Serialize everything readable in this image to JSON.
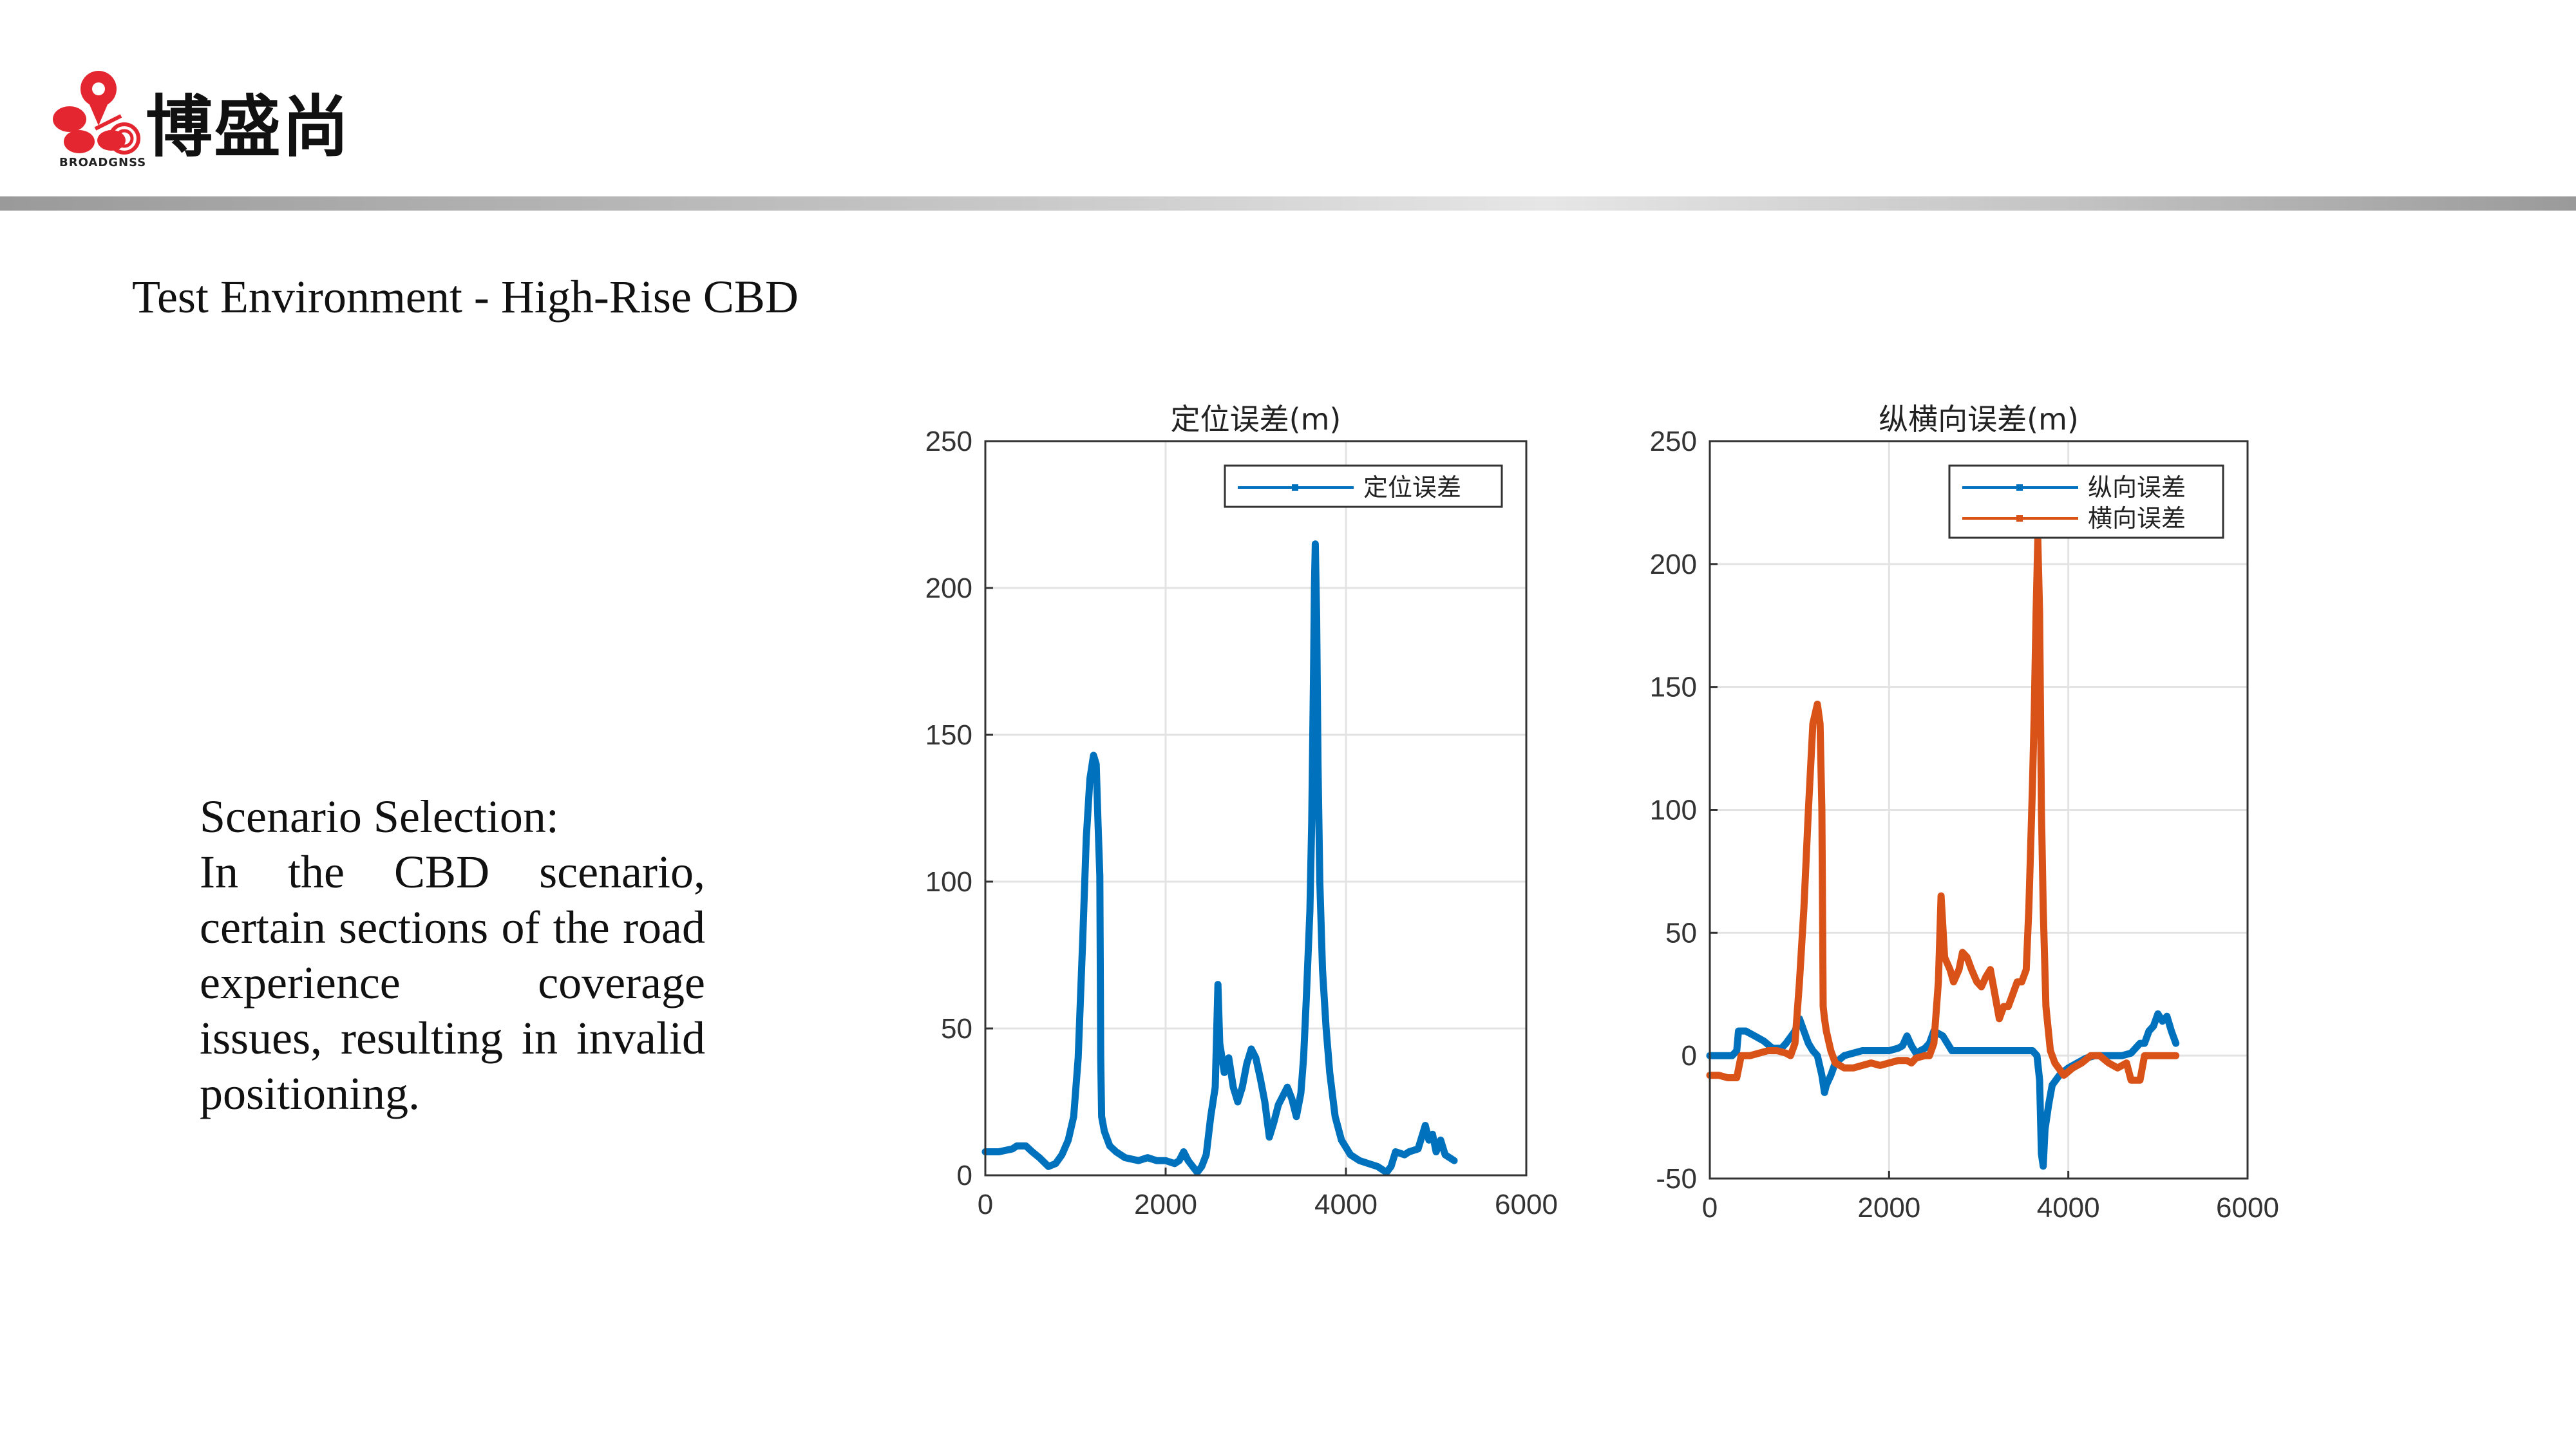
{
  "brand": {
    "name": "博盛尚",
    "sub": "BROADGNSS",
    "color": "#e3262f"
  },
  "heading": "Test Environment - High-Rise CBD",
  "scenario": {
    "title": "Scenario Selection:",
    "body": "In the CBD scenario, certain sections of the road experience coverage issues, resulting in invalid positioning."
  },
  "chart_data": [
    {
      "type": "line",
      "title": "定位误差(m)",
      "xlim": [
        0,
        6000
      ],
      "ylim": [
        0,
        250
      ],
      "xticks": [
        0,
        2000,
        4000,
        6000
      ],
      "yticks": [
        0,
        50,
        100,
        150,
        200,
        250
      ],
      "grid": true,
      "legend": "top-right",
      "series": [
        {
          "name": "定位误差",
          "color": "#0072bd",
          "points": [
            [
              0,
              8
            ],
            [
              150,
              8
            ],
            [
              300,
              9
            ],
            [
              350,
              10
            ],
            [
              450,
              10
            ],
            [
              520,
              8
            ],
            [
              600,
              6
            ],
            [
              700,
              3
            ],
            [
              780,
              4
            ],
            [
              850,
              7
            ],
            [
              920,
              12
            ],
            [
              980,
              20
            ],
            [
              1030,
              40
            ],
            [
              1080,
              80
            ],
            [
              1120,
              115
            ],
            [
              1160,
              135
            ],
            [
              1200,
              143
            ],
            [
              1230,
              140
            ],
            [
              1250,
              120
            ],
            [
              1270,
              102
            ],
            [
              1280,
              40
            ],
            [
              1290,
              20
            ],
            [
              1320,
              15
            ],
            [
              1380,
              10
            ],
            [
              1450,
              8
            ],
            [
              1550,
              6
            ],
            [
              1700,
              5
            ],
            [
              1800,
              6
            ],
            [
              1900,
              5
            ],
            [
              2000,
              5
            ],
            [
              2100,
              4
            ],
            [
              2150,
              5
            ],
            [
              2200,
              8
            ],
            [
              2250,
              5
            ],
            [
              2300,
              3
            ],
            [
              2350,
              1
            ],
            [
              2400,
              3
            ],
            [
              2450,
              7
            ],
            [
              2500,
              20
            ],
            [
              2550,
              30
            ],
            [
              2580,
              65
            ],
            [
              2600,
              45
            ],
            [
              2650,
              35
            ],
            [
              2700,
              40
            ],
            [
              2750,
              30
            ],
            [
              2800,
              25
            ],
            [
              2850,
              30
            ],
            [
              2900,
              38
            ],
            [
              2950,
              43
            ],
            [
              3000,
              40
            ],
            [
              3050,
              33
            ],
            [
              3100,
              25
            ],
            [
              3150,
              13
            ],
            [
              3200,
              18
            ],
            [
              3250,
              24
            ],
            [
              3300,
              27
            ],
            [
              3350,
              30
            ],
            [
              3400,
              26
            ],
            [
              3450,
              20
            ],
            [
              3500,
              28
            ],
            [
              3530,
              40
            ],
            [
              3560,
              60
            ],
            [
              3600,
              90
            ],
            [
              3620,
              120
            ],
            [
              3640,
              170
            ],
            [
              3650,
              200
            ],
            [
              3660,
              215
            ],
            [
              3675,
              190
            ],
            [
              3690,
              140
            ],
            [
              3710,
              100
            ],
            [
              3740,
              70
            ],
            [
              3780,
              50
            ],
            [
              3820,
              35
            ],
            [
              3880,
              20
            ],
            [
              3950,
              12
            ],
            [
              4050,
              7
            ],
            [
              4150,
              5
            ],
            [
              4250,
              4
            ],
            [
              4350,
              3
            ],
            [
              4450,
              1
            ],
            [
              4500,
              3
            ],
            [
              4550,
              8
            ],
            [
              4650,
              7
            ],
            [
              4700,
              8
            ],
            [
              4800,
              9
            ],
            [
              4850,
              14
            ],
            [
              4880,
              17
            ],
            [
              4920,
              12
            ],
            [
              4960,
              14
            ],
            [
              5000,
              8
            ],
            [
              5050,
              12
            ],
            [
              5100,
              7
            ],
            [
              5200,
              5
            ]
          ]
        }
      ]
    },
    {
      "type": "line",
      "title": "纵横向误差(m)",
      "xlim": [
        0,
        6000
      ],
      "ylim": [
        -50,
        250
      ],
      "xticks": [
        0,
        2000,
        4000,
        6000
      ],
      "yticks": [
        -50,
        0,
        50,
        100,
        150,
        200,
        250
      ],
      "grid": true,
      "legend": "top-right",
      "series": [
        {
          "name": "纵向误差",
          "color": "#0072bd",
          "points": [
            [
              0,
              0
            ],
            [
              150,
              0
            ],
            [
              250,
              0
            ],
            [
              300,
              2
            ],
            [
              320,
              10
            ],
            [
              400,
              10
            ],
            [
              500,
              8
            ],
            [
              600,
              6
            ],
            [
              700,
              3
            ],
            [
              800,
              3
            ],
            [
              850,
              5
            ],
            [
              950,
              10
            ],
            [
              1000,
              15
            ],
            [
              1050,
              10
            ],
            [
              1100,
              5
            ],
            [
              1150,
              2
            ],
            [
              1200,
              0
            ],
            [
              1250,
              -8
            ],
            [
              1280,
              -15
            ],
            [
              1300,
              -12
            ],
            [
              1350,
              -8
            ],
            [
              1400,
              -3
            ],
            [
              1500,
              0
            ],
            [
              1600,
              1
            ],
            [
              1700,
              2
            ],
            [
              1800,
              2
            ],
            [
              1900,
              2
            ],
            [
              2000,
              2
            ],
            [
              2100,
              3
            ],
            [
              2150,
              4
            ],
            [
              2200,
              8
            ],
            [
              2250,
              4
            ],
            [
              2300,
              1
            ],
            [
              2400,
              3
            ],
            [
              2450,
              5
            ],
            [
              2500,
              10
            ],
            [
              2550,
              9
            ],
            [
              2600,
              8
            ],
            [
              2700,
              2
            ],
            [
              2800,
              2
            ],
            [
              2900,
              2
            ],
            [
              3000,
              2
            ],
            [
              3100,
              2
            ],
            [
              3200,
              2
            ],
            [
              3300,
              2
            ],
            [
              3400,
              2
            ],
            [
              3500,
              2
            ],
            [
              3600,
              2
            ],
            [
              3650,
              0
            ],
            [
              3680,
              -10
            ],
            [
              3700,
              -40
            ],
            [
              3720,
              -45
            ],
            [
              3740,
              -30
            ],
            [
              3780,
              -20
            ],
            [
              3820,
              -12
            ],
            [
              3900,
              -8
            ],
            [
              4000,
              -5
            ],
            [
              4100,
              -3
            ],
            [
              4200,
              -1
            ],
            [
              4300,
              0
            ],
            [
              4500,
              0
            ],
            [
              4600,
              0
            ],
            [
              4700,
              1
            ],
            [
              4800,
              5
            ],
            [
              4850,
              5
            ],
            [
              4900,
              10
            ],
            [
              4950,
              12
            ],
            [
              5000,
              17
            ],
            [
              5050,
              14
            ],
            [
              5100,
              16
            ],
            [
              5150,
              10
            ],
            [
              5200,
              5
            ]
          ]
        },
        {
          "name": "横向误差",
          "color": "#d95319",
          "points": [
            [
              0,
              -8
            ],
            [
              100,
              -8
            ],
            [
              200,
              -9
            ],
            [
              300,
              -9
            ],
            [
              350,
              0
            ],
            [
              450,
              0
            ],
            [
              550,
              1
            ],
            [
              650,
              2
            ],
            [
              750,
              2
            ],
            [
              850,
              1
            ],
            [
              900,
              0
            ],
            [
              950,
              5
            ],
            [
              1000,
              30
            ],
            [
              1050,
              60
            ],
            [
              1100,
              100
            ],
            [
              1150,
              135
            ],
            [
              1200,
              143
            ],
            [
              1230,
              135
            ],
            [
              1250,
              100
            ],
            [
              1265,
              20
            ],
            [
              1280,
              15
            ],
            [
              1300,
              10
            ],
            [
              1350,
              2
            ],
            [
              1400,
              -3
            ],
            [
              1500,
              -5
            ],
            [
              1600,
              -5
            ],
            [
              1700,
              -4
            ],
            [
              1800,
              -3
            ],
            [
              1900,
              -4
            ],
            [
              2000,
              -3
            ],
            [
              2100,
              -2
            ],
            [
              2200,
              -2
            ],
            [
              2250,
              -3
            ],
            [
              2300,
              -1
            ],
            [
              2400,
              0
            ],
            [
              2450,
              0
            ],
            [
              2500,
              5
            ],
            [
              2550,
              30
            ],
            [
              2580,
              65
            ],
            [
              2620,
              40
            ],
            [
              2680,
              35
            ],
            [
              2720,
              30
            ],
            [
              2780,
              35
            ],
            [
              2820,
              42
            ],
            [
              2870,
              40
            ],
            [
              2920,
              35
            ],
            [
              2980,
              30
            ],
            [
              3030,
              28
            ],
            [
              3080,
              32
            ],
            [
              3130,
              35
            ],
            [
              3180,
              25
            ],
            [
              3230,
              15
            ],
            [
              3280,
              20
            ],
            [
              3330,
              20
            ],
            [
              3380,
              25
            ],
            [
              3430,
              30
            ],
            [
              3480,
              30
            ],
            [
              3530,
              35
            ],
            [
              3560,
              60
            ],
            [
              3600,
              110
            ],
            [
              3620,
              140
            ],
            [
              3640,
              180
            ],
            [
              3660,
              210
            ],
            [
              3680,
              180
            ],
            [
              3700,
              100
            ],
            [
              3720,
              60
            ],
            [
              3750,
              20
            ],
            [
              3800,
              2
            ],
            [
              3850,
              -3
            ],
            [
              3950,
              -8
            ],
            [
              4050,
              -5
            ],
            [
              4150,
              -3
            ],
            [
              4250,
              0
            ],
            [
              4350,
              0
            ],
            [
              4450,
              -3
            ],
            [
              4550,
              -5
            ],
            [
              4650,
              -3
            ],
            [
              4700,
              -10
            ],
            [
              4800,
              -10
            ],
            [
              4850,
              0
            ],
            [
              4950,
              0
            ],
            [
              5050,
              0
            ],
            [
              5150,
              0
            ],
            [
              5200,
              0
            ]
          ]
        }
      ]
    }
  ]
}
